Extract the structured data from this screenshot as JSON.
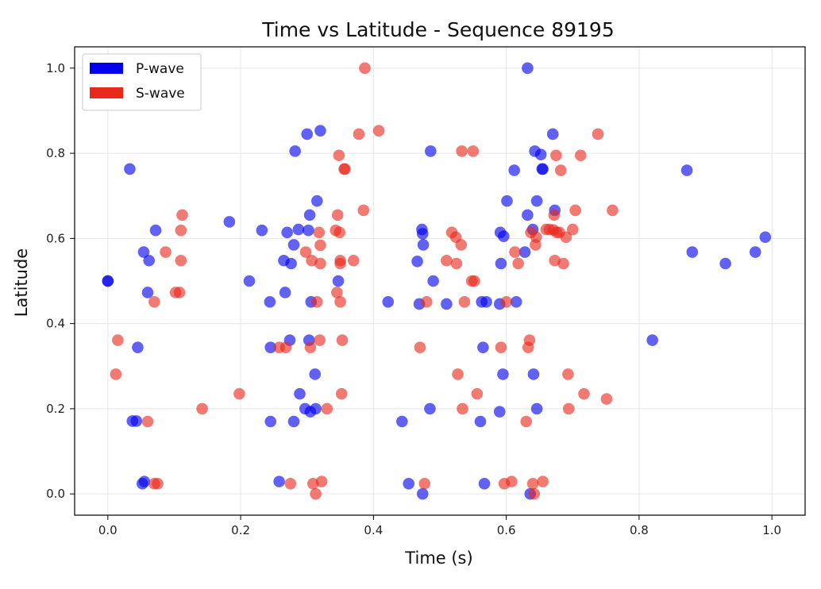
{
  "chart_data": {
    "type": "scatter",
    "title": "Time vs Latitude - Sequence 89195",
    "xlabel": "Time (s)",
    "ylabel": "Latitude",
    "xlim": [
      -0.05,
      1.05
    ],
    "ylim": [
      -0.05,
      1.05
    ],
    "xticks": [
      "0.0",
      "0.2",
      "0.4",
      "0.6",
      "0.8",
      "1.0"
    ],
    "yticks": [
      "0.0",
      "0.2",
      "0.4",
      "0.6",
      "0.8",
      "1.0"
    ],
    "grid": true,
    "legend_position": "top-left",
    "series": [
      {
        "name": "P-wave",
        "color": "#0000ee",
        "points": [
          [
            0.0,
            0.5
          ],
          [
            0.0,
            0.5
          ],
          [
            0.033,
            0.763
          ],
          [
            0.037,
            0.171
          ],
          [
            0.043,
            0.171
          ],
          [
            0.045,
            0.344
          ],
          [
            0.052,
            0.024
          ],
          [
            0.054,
            0.568
          ],
          [
            0.055,
            0.029
          ],
          [
            0.06,
            0.473
          ],
          [
            0.062,
            0.548
          ],
          [
            0.072,
            0.619
          ],
          [
            0.183,
            0.639
          ],
          [
            0.213,
            0.5
          ],
          [
            0.232,
            0.619
          ],
          [
            0.244,
            0.451
          ],
          [
            0.245,
            0.344
          ],
          [
            0.245,
            0.17
          ],
          [
            0.258,
            0.029
          ],
          [
            0.265,
            0.548
          ],
          [
            0.267,
            0.473
          ],
          [
            0.27,
            0.614
          ],
          [
            0.274,
            0.361
          ],
          [
            0.276,
            0.541
          ],
          [
            0.28,
            0.585
          ],
          [
            0.28,
            0.17
          ],
          [
            0.282,
            0.805
          ],
          [
            0.287,
            0.621
          ],
          [
            0.289,
            0.235
          ],
          [
            0.297,
            0.2
          ],
          [
            0.3,
            0.845
          ],
          [
            0.302,
            0.619
          ],
          [
            0.303,
            0.361
          ],
          [
            0.304,
            0.655
          ],
          [
            0.305,
            0.193
          ],
          [
            0.306,
            0.451
          ],
          [
            0.312,
            0.281
          ],
          [
            0.313,
            0.2
          ],
          [
            0.315,
            0.688
          ],
          [
            0.32,
            0.853
          ],
          [
            0.347,
            0.5
          ],
          [
            0.422,
            0.451
          ],
          [
            0.443,
            0.17
          ],
          [
            0.453,
            0.024
          ],
          [
            0.466,
            0.546
          ],
          [
            0.469,
            0.446
          ],
          [
            0.473,
            0.621
          ],
          [
            0.474,
            0.0
          ],
          [
            0.474,
            0.611
          ],
          [
            0.475,
            0.585
          ],
          [
            0.485,
            0.2
          ],
          [
            0.486,
            0.805
          ],
          [
            0.49,
            0.5
          ],
          [
            0.51,
            0.446
          ],
          [
            0.561,
            0.17
          ],
          [
            0.563,
            0.451
          ],
          [
            0.565,
            0.344
          ],
          [
            0.567,
            0.024
          ],
          [
            0.57,
            0.451
          ],
          [
            0.59,
            0.193
          ],
          [
            0.59,
            0.446
          ],
          [
            0.591,
            0.614
          ],
          [
            0.592,
            0.541
          ],
          [
            0.595,
            0.281
          ],
          [
            0.596,
            0.605
          ],
          [
            0.601,
            0.688
          ],
          [
            0.612,
            0.76
          ],
          [
            0.615,
            0.451
          ],
          [
            0.628,
            0.568
          ],
          [
            0.632,
            0.655
          ],
          [
            0.632,
            1.0
          ],
          [
            0.636,
            0.0
          ],
          [
            0.64,
            0.621
          ],
          [
            0.641,
            0.281
          ],
          [
            0.643,
            0.805
          ],
          [
            0.646,
            0.2
          ],
          [
            0.646,
            0.688
          ],
          [
            0.652,
            0.797
          ],
          [
            0.654,
            0.763
          ],
          [
            0.655,
            0.763
          ],
          [
            0.67,
            0.845
          ],
          [
            0.673,
            0.666
          ],
          [
            0.82,
            0.361
          ],
          [
            0.872,
            0.76
          ],
          [
            0.88,
            0.568
          ],
          [
            0.93,
            0.541
          ],
          [
            0.975,
            0.568
          ],
          [
            0.99,
            0.603
          ]
        ]
      },
      {
        "name": "S-wave",
        "color": "#e8291c",
        "points": [
          [
            0.012,
            0.281
          ],
          [
            0.015,
            0.361
          ],
          [
            0.06,
            0.17
          ],
          [
            0.07,
            0.024
          ],
          [
            0.07,
            0.451
          ],
          [
            0.075,
            0.024
          ],
          [
            0.087,
            0.568
          ],
          [
            0.102,
            0.473
          ],
          [
            0.108,
            0.473
          ],
          [
            0.11,
            0.548
          ],
          [
            0.11,
            0.619
          ],
          [
            0.112,
            0.655
          ],
          [
            0.142,
            0.2
          ],
          [
            0.198,
            0.235
          ],
          [
            0.258,
            0.344
          ],
          [
            0.268,
            0.344
          ],
          [
            0.275,
            0.024
          ],
          [
            0.298,
            0.568
          ],
          [
            0.305,
            0.344
          ],
          [
            0.307,
            0.548
          ],
          [
            0.309,
            0.024
          ],
          [
            0.313,
            0.0
          ],
          [
            0.315,
            0.451
          ],
          [
            0.318,
            0.614
          ],
          [
            0.319,
            0.361
          ],
          [
            0.32,
            0.584
          ],
          [
            0.32,
            0.541
          ],
          [
            0.322,
            0.029
          ],
          [
            0.33,
            0.2
          ],
          [
            0.343,
            0.619
          ],
          [
            0.345,
            0.473
          ],
          [
            0.346,
            0.655
          ],
          [
            0.348,
            0.795
          ],
          [
            0.349,
            0.614
          ],
          [
            0.35,
            0.451
          ],
          [
            0.35,
            0.548
          ],
          [
            0.35,
            0.541
          ],
          [
            0.352,
            0.235
          ],
          [
            0.353,
            0.361
          ],
          [
            0.356,
            0.763
          ],
          [
            0.357,
            0.763
          ],
          [
            0.37,
            0.548
          ],
          [
            0.378,
            0.845
          ],
          [
            0.385,
            0.666
          ],
          [
            0.387,
            1.0
          ],
          [
            0.408,
            0.853
          ],
          [
            0.47,
            0.344
          ],
          [
            0.477,
            0.024
          ],
          [
            0.48,
            0.451
          ],
          [
            0.51,
            0.548
          ],
          [
            0.518,
            0.614
          ],
          [
            0.524,
            0.603
          ],
          [
            0.525,
            0.541
          ],
          [
            0.527,
            0.281
          ],
          [
            0.532,
            0.585
          ],
          [
            0.533,
            0.805
          ],
          [
            0.534,
            0.2
          ],
          [
            0.537,
            0.451
          ],
          [
            0.548,
            0.5
          ],
          [
            0.55,
            0.805
          ],
          [
            0.552,
            0.5
          ],
          [
            0.556,
            0.235
          ],
          [
            0.592,
            0.344
          ],
          [
            0.597,
            0.024
          ],
          [
            0.6,
            0.451
          ],
          [
            0.608,
            0.029
          ],
          [
            0.613,
            0.568
          ],
          [
            0.618,
            0.541
          ],
          [
            0.63,
            0.17
          ],
          [
            0.633,
            0.344
          ],
          [
            0.635,
            0.361
          ],
          [
            0.637,
            0.614
          ],
          [
            0.64,
            0.024
          ],
          [
            0.642,
            0.0
          ],
          [
            0.644,
            0.585
          ],
          [
            0.645,
            0.603
          ],
          [
            0.655,
            0.029
          ],
          [
            0.66,
            0.621
          ],
          [
            0.665,
            0.621
          ],
          [
            0.671,
            0.62
          ],
          [
            0.672,
            0.655
          ],
          [
            0.673,
            0.548
          ],
          [
            0.675,
            0.795
          ],
          [
            0.676,
            0.614
          ],
          [
            0.68,
            0.614
          ],
          [
            0.682,
            0.76
          ],
          [
            0.686,
            0.541
          ],
          [
            0.69,
            0.603
          ],
          [
            0.693,
            0.281
          ],
          [
            0.694,
            0.2
          ],
          [
            0.7,
            0.621
          ],
          [
            0.704,
            0.666
          ],
          [
            0.712,
            0.795
          ],
          [
            0.717,
            0.235
          ],
          [
            0.738,
            0.845
          ],
          [
            0.751,
            0.223
          ],
          [
            0.76,
            0.666
          ]
        ]
      }
    ]
  }
}
